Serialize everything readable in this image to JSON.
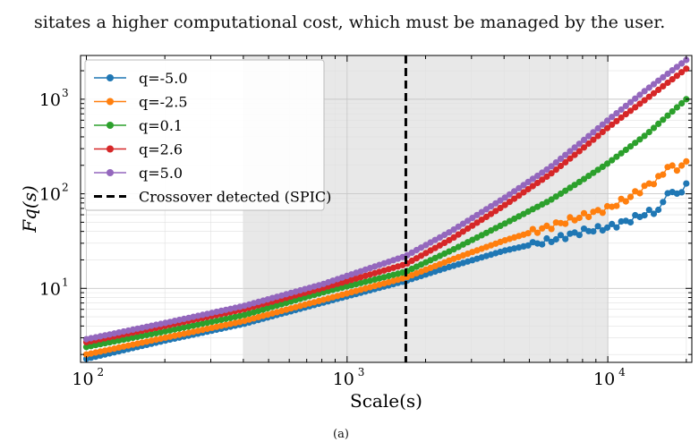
{
  "page": {
    "top_text": "sitates a higher computational cost, which must be managed by the user.",
    "caption_mark": "(a)"
  },
  "chart_data": {
    "type": "line",
    "x_scale": "log",
    "y_scale": "log",
    "xlabel": "Scale(s)",
    "ylabel": "Fq(s)",
    "xlim": [
      95,
      21000
    ],
    "ylim": [
      1.65,
      2900
    ],
    "x_ticks": [
      100,
      1000,
      10000
    ],
    "x_tick_labels": [
      "10",
      "10",
      "10"
    ],
    "x_tick_exponents": [
      "2",
      "3",
      "4"
    ],
    "y_ticks": [
      10,
      100,
      1000
    ],
    "y_tick_labels": [
      "10",
      "10",
      "10"
    ],
    "y_tick_exponents": [
      "1",
      "2",
      "3"
    ],
    "grid": true,
    "legend_position": "top-left",
    "shaded_region": [
      400,
      10000
    ],
    "crossover_scale": 1680,
    "crossover_label": "Crossover detected (SPIC)",
    "series": [
      {
        "name": "q=-5.0",
        "color": "#1f77b4",
        "x": [
          100,
          200,
          400,
          800,
          1680,
          2500,
          4000,
          6000,
          8000,
          10000,
          12000,
          14000,
          16000,
          17000,
          18000,
          20000
        ],
        "y": [
          1.8,
          2.8,
          4.2,
          7.0,
          12.0,
          17.0,
          25.0,
          32.0,
          40.0,
          44.0,
          52.0,
          62.0,
          68.0,
          110.0,
          95.0,
          120.0
        ]
      },
      {
        "name": "q=-2.5",
        "color": "#ff7f0e",
        "x": [
          100,
          200,
          400,
          800,
          1680,
          2500,
          4000,
          6000,
          8000,
          10000,
          12000,
          14000,
          16000,
          17000,
          18000,
          20000
        ],
        "y": [
          2.0,
          3.0,
          4.5,
          7.5,
          13.0,
          20.0,
          32.0,
          45.0,
          58.0,
          70.0,
          90.0,
          120.0,
          150.0,
          200.0,
          180.0,
          210.0
        ]
      },
      {
        "name": "q=0.1",
        "color": "#2ca02c",
        "x": [
          100,
          200,
          400,
          800,
          1680,
          2500,
          4000,
          6000,
          8000,
          10000,
          14000,
          20000
        ],
        "y": [
          2.4,
          3.5,
          5.2,
          9.0,
          15.0,
          25.0,
          48.0,
          85.0,
          140.0,
          210.0,
          420.0,
          1000.0
        ]
      },
      {
        "name": "q=2.6",
        "color": "#d62728",
        "x": [
          100,
          200,
          400,
          800,
          1680,
          2500,
          4000,
          6000,
          8000,
          10000,
          14000,
          20000
        ],
        "y": [
          2.7,
          4.0,
          6.0,
          10.0,
          18.0,
          33.0,
          75.0,
          160.0,
          300.0,
          500.0,
          1000.0,
          2100.0
        ]
      },
      {
        "name": "q=5.0",
        "color": "#9467bd",
        "x": [
          100,
          200,
          400,
          800,
          1680,
          2500,
          4000,
          6000,
          8000,
          10000,
          14000,
          20000
        ],
        "y": [
          2.9,
          4.3,
          6.5,
          11.0,
          22.0,
          40.0,
          90.0,
          190.0,
          360.0,
          600.0,
          1250.0,
          2600.0
        ]
      }
    ]
  }
}
